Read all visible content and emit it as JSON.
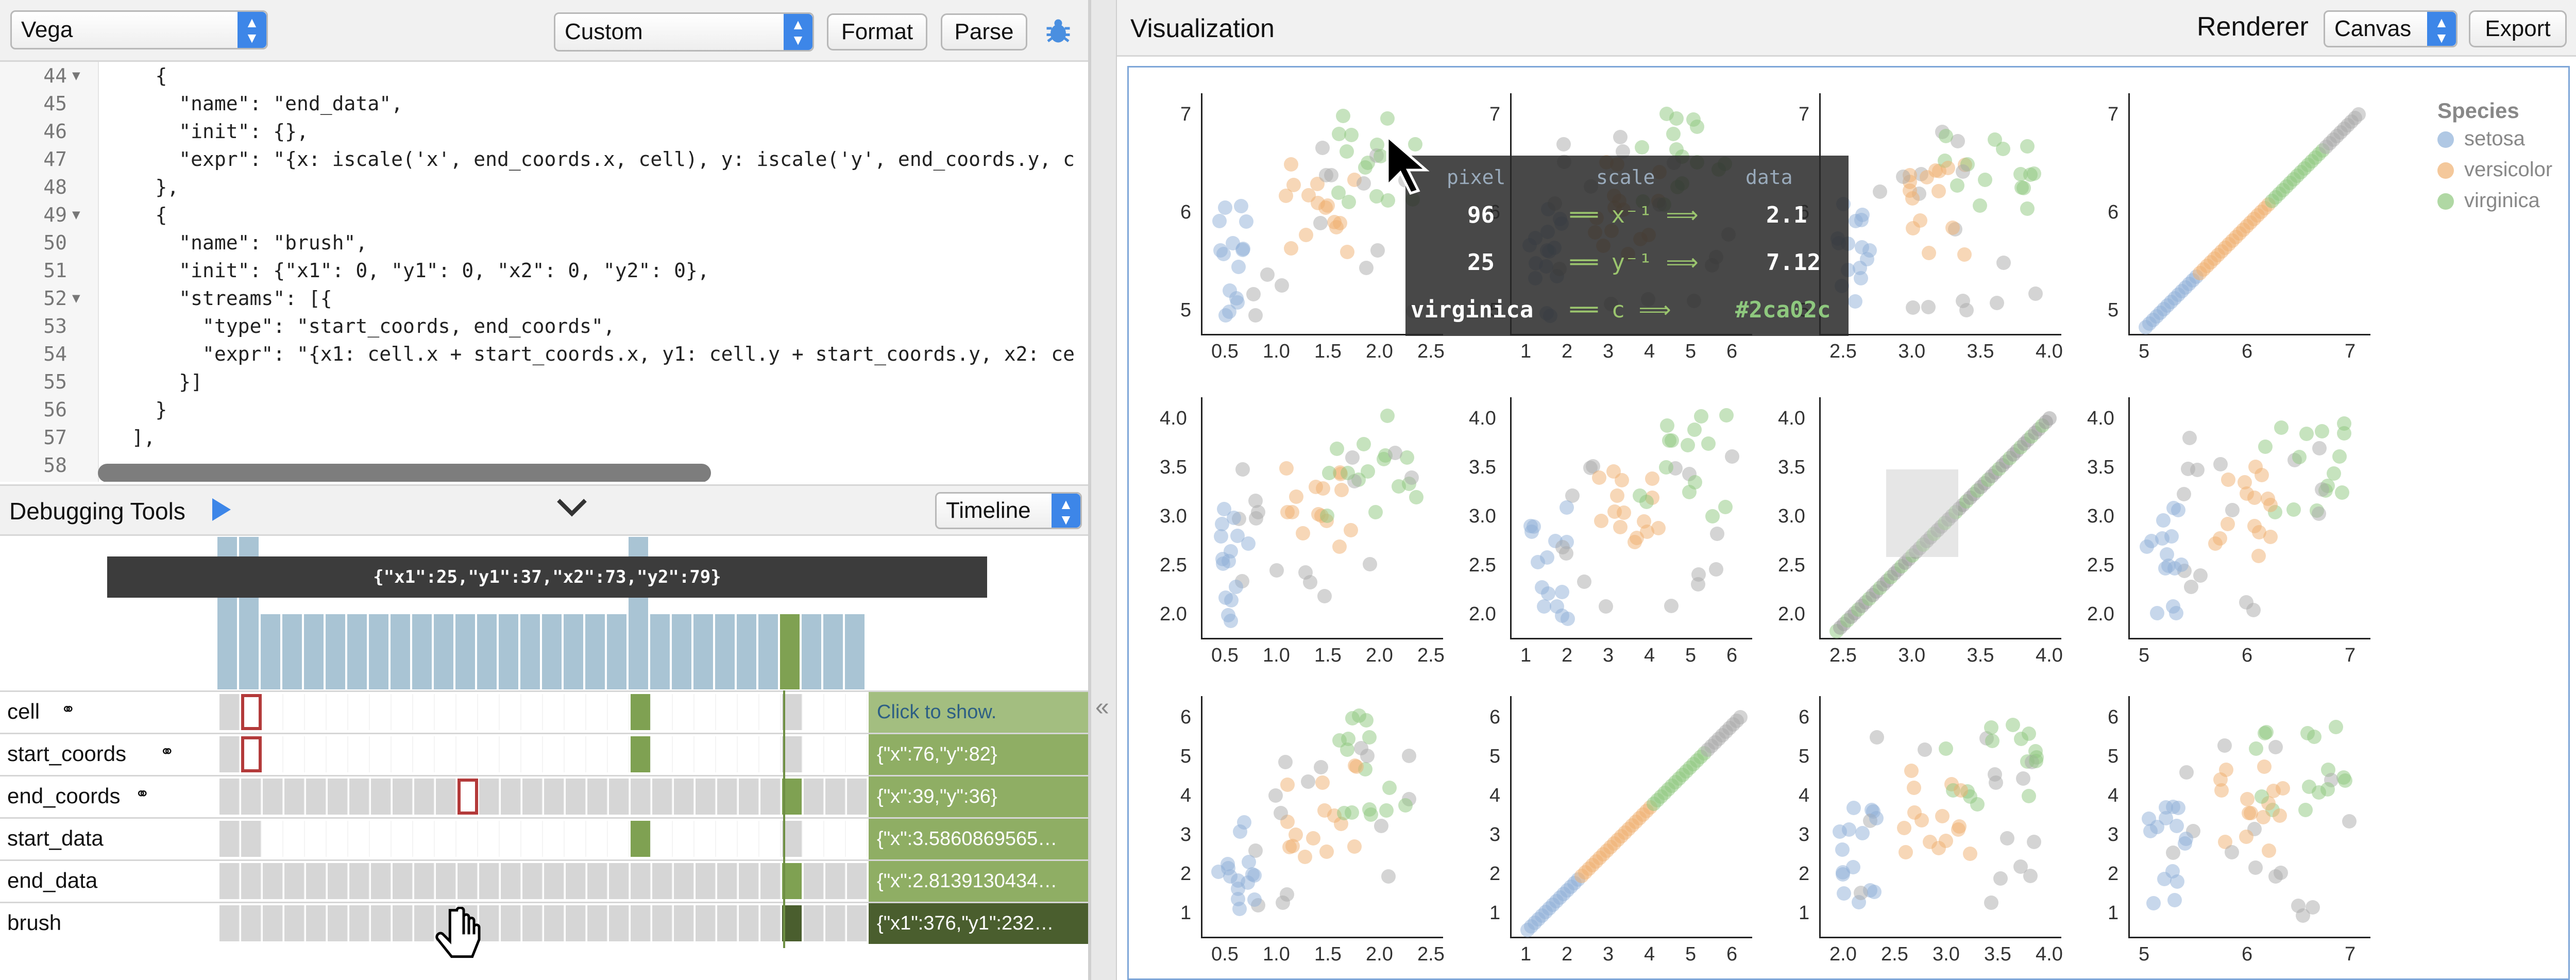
{
  "left_toolbar": {
    "mode_select": "Vega",
    "preset_select": "Custom",
    "format_label": "Format",
    "parse_label": "Parse"
  },
  "editor": {
    "lines": [
      {
        "n": "44",
        "fold": true,
        "text": "    {"
      },
      {
        "n": "45",
        "text": "      \"name\": \"end_data\","
      },
      {
        "n": "46",
        "text": "      \"init\": {},"
      },
      {
        "n": "47",
        "text": "      \"expr\": \"{x: iscale('x', end_coords.x, cell), y: iscale('y', end_coords.y, c"
      },
      {
        "n": "48",
        "text": "    },"
      },
      {
        "n": "49",
        "fold": true,
        "text": "    {"
      },
      {
        "n": "50",
        "text": "      \"name\": \"brush\","
      },
      {
        "n": "51",
        "text": "      \"init\": {\"x1\": 0, \"y1\": 0, \"x2\": 0, \"y2\": 0},"
      },
      {
        "n": "52",
        "fold": true,
        "text": "      \"streams\": [{"
      },
      {
        "n": "53",
        "text": "        \"type\": \"start_coords, end_coords\","
      },
      {
        "n": "54",
        "text": "        \"expr\": \"{x1: cell.x + start_coords.x, y1: cell.y + start_coords.y, x2: ce"
      },
      {
        "n": "55",
        "text": "      }]"
      },
      {
        "n": "56",
        "text": "    }"
      },
      {
        "n": "57",
        "text": "  ],"
      },
      {
        "n": "58",
        "text": ""
      }
    ]
  },
  "debug": {
    "title": "Debugging Tools",
    "view_select": "Timeline",
    "tooltip": "{\"x1\":25,\"y1\":37,\"x2\":73,\"y2\":79}",
    "collapse_arrow": "❯",
    "signals": [
      {
        "name": "cell",
        "link": true,
        "value": "Click to show."
      },
      {
        "name": "start_coords",
        "link": true,
        "value": "{\"x\":76,\"y\":82}"
      },
      {
        "name": "end_coords",
        "link": true,
        "value": "{\"x\":39,\"y\":36}"
      },
      {
        "name": "start_data",
        "link": false,
        "value": "{\"x\":3.5860869565…"
      },
      {
        "name": "end_data",
        "link": false,
        "value": "{\"x\":2.8139130434…"
      },
      {
        "name": "brush",
        "link": false,
        "value": "{\"x1\":376,\"y1\":232…"
      }
    ]
  },
  "visualization": {
    "title": "Visualization",
    "renderer_label": "Renderer",
    "renderer_select": "Canvas",
    "export_label": "Export",
    "legend": {
      "title": "Species",
      "items": [
        {
          "label": "setosa",
          "color": "#8fb0d8"
        },
        {
          "label": "versicolor",
          "color": "#f0b070"
        },
        {
          "label": "virginica",
          "color": "#8ec87e"
        }
      ]
    },
    "tooltip": {
      "headers": [
        "pixel",
        "scale",
        "data"
      ],
      "rows": [
        {
          "pixel": "96",
          "scale": "x⁻¹",
          "data": "2.1"
        },
        {
          "pixel": "25",
          "scale": "y⁻¹",
          "data": "7.12"
        },
        {
          "pixel": "virginica",
          "scale": "c",
          "data": "#2ca02c"
        }
      ]
    },
    "panel_x_ticks": [
      [
        "0.5",
        "1.0",
        "1.5",
        "2.0",
        "2.5"
      ],
      [
        "1",
        "2",
        "3",
        "4",
        "5",
        "6"
      ],
      [
        "2.5",
        "3.0",
        "3.5",
        "4.0"
      ],
      [
        "5",
        "6",
        "7"
      ]
    ],
    "panel_y_ticks": [
      [
        "7",
        "6",
        "5"
      ],
      [
        "4.0",
        "3.5",
        "3.0",
        "2.5",
        "2.0"
      ],
      [
        "6",
        "5",
        "4",
        "3",
        "2",
        "1"
      ]
    ],
    "row3_x_ticks": [
      [
        "0.5",
        "1.0",
        "1.5",
        "2.0",
        "2.5"
      ],
      [
        "1",
        "2",
        "3",
        "4",
        "5",
        "6"
      ],
      [
        "2.0",
        "2.5",
        "3.0",
        "3.5",
        "4.0"
      ],
      [
        "5",
        "6",
        "7"
      ]
    ]
  }
}
